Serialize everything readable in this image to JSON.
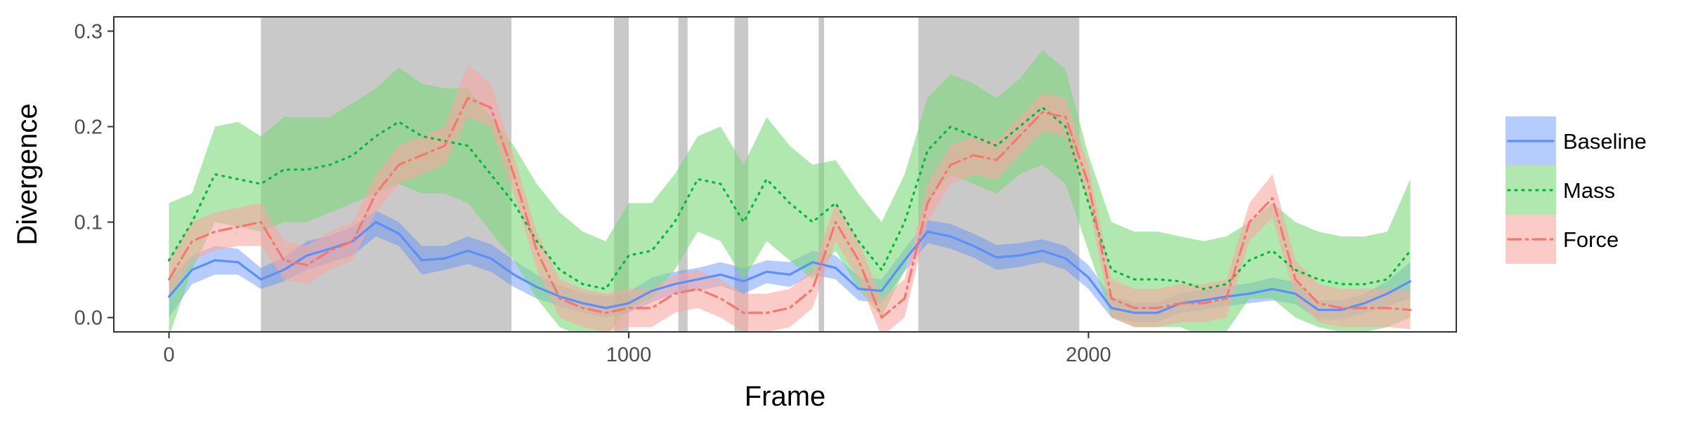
{
  "chart_data": {
    "type": "line",
    "title": "",
    "xlabel": "Frame",
    "ylabel": "Divergence",
    "xlim": [
      -120,
      2800
    ],
    "ylim": [
      -0.015,
      0.315
    ],
    "x_ticks": [
      0,
      1000,
      2000
    ],
    "y_ticks": [
      0.0,
      0.1,
      0.2,
      0.3
    ],
    "y_tick_labels": [
      "0.0",
      "0.1",
      "0.2",
      "0.3"
    ],
    "grid": false,
    "legend_position": "right",
    "shaded_x_ranges": [
      [
        200,
        745
      ],
      [
        968,
        1000
      ],
      [
        1108,
        1128
      ],
      [
        1230,
        1260
      ],
      [
        1413,
        1425
      ],
      [
        1630,
        1980
      ]
    ],
    "shaded_color": "#c9c9c9",
    "series": [
      {
        "name": "Baseline",
        "color": "#5b8ff9",
        "dash": "solid",
        "x": [
          0,
          50,
          100,
          150,
          200,
          250,
          300,
          350,
          400,
          450,
          500,
          550,
          600,
          650,
          700,
          750,
          800,
          850,
          900,
          950,
          1000,
          1050,
          1100,
          1150,
          1200,
          1250,
          1300,
          1350,
          1400,
          1450,
          1500,
          1550,
          1600,
          1650,
          1700,
          1750,
          1800,
          1850,
          1900,
          1950,
          2000,
          2050,
          2100,
          2150,
          2200,
          2250,
          2300,
          2350,
          2400,
          2450,
          2500,
          2550,
          2600,
          2650,
          2700
        ],
        "y": [
          0.022,
          0.05,
          0.06,
          0.058,
          0.04,
          0.05,
          0.065,
          0.072,
          0.08,
          0.1,
          0.088,
          0.06,
          0.062,
          0.07,
          0.062,
          0.045,
          0.032,
          0.022,
          0.015,
          0.01,
          0.015,
          0.028,
          0.035,
          0.04,
          0.045,
          0.038,
          0.048,
          0.045,
          0.058,
          0.052,
          0.03,
          0.028,
          0.06,
          0.09,
          0.085,
          0.075,
          0.063,
          0.065,
          0.07,
          0.062,
          0.042,
          0.01,
          0.005,
          0.005,
          0.015,
          0.018,
          0.022,
          0.025,
          0.03,
          0.025,
          0.008,
          0.008,
          0.015,
          0.025,
          0.038
        ],
        "lower": [
          0.0,
          0.035,
          0.045,
          0.045,
          0.03,
          0.038,
          0.05,
          0.058,
          0.065,
          0.085,
          0.075,
          0.045,
          0.05,
          0.056,
          0.048,
          0.032,
          0.02,
          0.012,
          0.005,
          0.0,
          0.005,
          0.016,
          0.025,
          0.028,
          0.033,
          0.025,
          0.036,
          0.032,
          0.045,
          0.04,
          0.018,
          0.015,
          0.048,
          0.078,
          0.072,
          0.063,
          0.05,
          0.053,
          0.058,
          0.05,
          0.03,
          0.0,
          -0.005,
          -0.005,
          0.005,
          0.008,
          0.012,
          0.015,
          0.018,
          0.014,
          -0.002,
          -0.002,
          0.005,
          0.012,
          0.02
        ],
        "upper": [
          0.04,
          0.065,
          0.075,
          0.072,
          0.052,
          0.063,
          0.08,
          0.086,
          0.095,
          0.112,
          0.1,
          0.075,
          0.075,
          0.085,
          0.077,
          0.06,
          0.045,
          0.034,
          0.026,
          0.022,
          0.027,
          0.042,
          0.048,
          0.052,
          0.058,
          0.052,
          0.06,
          0.058,
          0.07,
          0.065,
          0.043,
          0.04,
          0.072,
          0.102,
          0.098,
          0.088,
          0.076,
          0.078,
          0.082,
          0.075,
          0.055,
          0.022,
          0.016,
          0.016,
          0.026,
          0.029,
          0.033,
          0.036,
          0.042,
          0.037,
          0.018,
          0.018,
          0.025,
          0.038,
          0.058
        ]
      },
      {
        "name": "Mass",
        "color": "#00ba38",
        "fill_color": "#7cd97c",
        "dash": "dotted",
        "x": [
          0,
          50,
          100,
          150,
          200,
          250,
          300,
          350,
          400,
          450,
          500,
          550,
          600,
          650,
          700,
          750,
          800,
          850,
          900,
          950,
          1000,
          1050,
          1100,
          1150,
          1200,
          1250,
          1300,
          1350,
          1400,
          1450,
          1500,
          1550,
          1600,
          1650,
          1700,
          1750,
          1800,
          1850,
          1900,
          1950,
          2000,
          2050,
          2100,
          2150,
          2200,
          2250,
          2300,
          2350,
          2400,
          2450,
          2500,
          2550,
          2600,
          2650,
          2700
        ],
        "y": [
          0.06,
          0.1,
          0.15,
          0.145,
          0.14,
          0.155,
          0.155,
          0.16,
          0.17,
          0.19,
          0.205,
          0.19,
          0.185,
          0.18,
          0.15,
          0.12,
          0.08,
          0.05,
          0.035,
          0.03,
          0.065,
          0.07,
          0.1,
          0.145,
          0.14,
          0.1,
          0.145,
          0.12,
          0.1,
          0.12,
          0.08,
          0.05,
          0.1,
          0.175,
          0.2,
          0.19,
          0.18,
          0.2,
          0.22,
          0.2,
          0.12,
          0.05,
          0.04,
          0.04,
          0.038,
          0.03,
          0.035,
          0.06,
          0.07,
          0.05,
          0.04,
          0.035,
          0.035,
          0.04,
          0.07
        ],
        "lower": [
          -0.02,
          0.05,
          0.1,
          0.095,
          0.09,
          0.1,
          0.1,
          0.11,
          0.12,
          0.13,
          0.14,
          0.13,
          0.13,
          0.12,
          0.09,
          0.06,
          0.02,
          -0.01,
          -0.02,
          -0.02,
          0.01,
          0.02,
          0.05,
          0.09,
          0.08,
          0.04,
          0.08,
          0.06,
          0.04,
          0.07,
          0.03,
          0.0,
          0.05,
          0.12,
          0.15,
          0.14,
          0.13,
          0.15,
          0.16,
          0.14,
          0.07,
          0.0,
          -0.01,
          -0.01,
          -0.01,
          -0.02,
          -0.015,
          0.02,
          0.02,
          0.0,
          -0.01,
          -0.015,
          -0.015,
          -0.01,
          0.0
        ],
        "upper": [
          0.12,
          0.13,
          0.2,
          0.205,
          0.19,
          0.21,
          0.21,
          0.21,
          0.225,
          0.24,
          0.262,
          0.245,
          0.24,
          0.24,
          0.21,
          0.18,
          0.14,
          0.11,
          0.09,
          0.08,
          0.12,
          0.12,
          0.15,
          0.19,
          0.2,
          0.16,
          0.21,
          0.18,
          0.16,
          0.165,
          0.13,
          0.1,
          0.15,
          0.23,
          0.255,
          0.245,
          0.23,
          0.25,
          0.28,
          0.26,
          0.17,
          0.1,
          0.09,
          0.09,
          0.085,
          0.08,
          0.085,
          0.1,
          0.12,
          0.1,
          0.09,
          0.085,
          0.085,
          0.09,
          0.145
        ]
      },
      {
        "name": "Force",
        "color": "#f8766d",
        "fill_color": "#f8a8a2",
        "dash": "dotdash",
        "x": [
          0,
          50,
          100,
          150,
          200,
          250,
          300,
          350,
          400,
          450,
          500,
          550,
          600,
          650,
          700,
          750,
          800,
          850,
          900,
          950,
          1000,
          1050,
          1100,
          1150,
          1200,
          1250,
          1300,
          1350,
          1400,
          1450,
          1500,
          1550,
          1600,
          1650,
          1700,
          1750,
          1800,
          1850,
          1900,
          1950,
          2000,
          2050,
          2100,
          2150,
          2200,
          2250,
          2300,
          2350,
          2400,
          2450,
          2500,
          2550,
          2600,
          2650,
          2700
        ],
        "y": [
          0.04,
          0.08,
          0.09,
          0.095,
          0.1,
          0.06,
          0.055,
          0.07,
          0.08,
          0.13,
          0.16,
          0.17,
          0.18,
          0.23,
          0.22,
          0.15,
          0.07,
          0.02,
          0.01,
          0.005,
          0.01,
          0.01,
          0.025,
          0.03,
          0.02,
          0.005,
          0.005,
          0.01,
          0.03,
          0.1,
          0.06,
          0.0,
          0.02,
          0.12,
          0.16,
          0.17,
          0.165,
          0.19,
          0.215,
          0.21,
          0.14,
          0.02,
          0.01,
          0.01,
          0.015,
          0.015,
          0.02,
          0.1,
          0.125,
          0.04,
          0.015,
          0.01,
          0.01,
          0.01,
          0.008
        ],
        "lower": [
          0.02,
          0.06,
          0.07,
          0.075,
          0.075,
          0.04,
          0.035,
          0.05,
          0.06,
          0.11,
          0.14,
          0.15,
          0.16,
          0.21,
          0.2,
          0.13,
          0.05,
          0.0,
          -0.01,
          -0.015,
          -0.01,
          -0.01,
          0.005,
          0.01,
          0.0,
          -0.015,
          -0.015,
          -0.01,
          0.01,
          0.08,
          0.04,
          -0.02,
          0.0,
          0.1,
          0.14,
          0.15,
          0.145,
          0.17,
          0.195,
          0.19,
          0.12,
          0.0,
          -0.01,
          -0.01,
          -0.005,
          -0.005,
          0.0,
          0.08,
          0.105,
          0.02,
          -0.005,
          -0.01,
          -0.01,
          -0.01,
          -0.012
        ],
        "upper": [
          0.06,
          0.1,
          0.11,
          0.115,
          0.12,
          0.08,
          0.075,
          0.09,
          0.1,
          0.15,
          0.18,
          0.19,
          0.2,
          0.265,
          0.245,
          0.17,
          0.09,
          0.04,
          0.03,
          0.025,
          0.03,
          0.03,
          0.045,
          0.05,
          0.04,
          0.025,
          0.025,
          0.03,
          0.05,
          0.12,
          0.08,
          0.02,
          0.04,
          0.14,
          0.18,
          0.19,
          0.185,
          0.21,
          0.235,
          0.23,
          0.16,
          0.04,
          0.03,
          0.03,
          0.035,
          0.035,
          0.04,
          0.12,
          0.15,
          0.06,
          0.035,
          0.03,
          0.03,
          0.03,
          0.028
        ]
      }
    ]
  }
}
